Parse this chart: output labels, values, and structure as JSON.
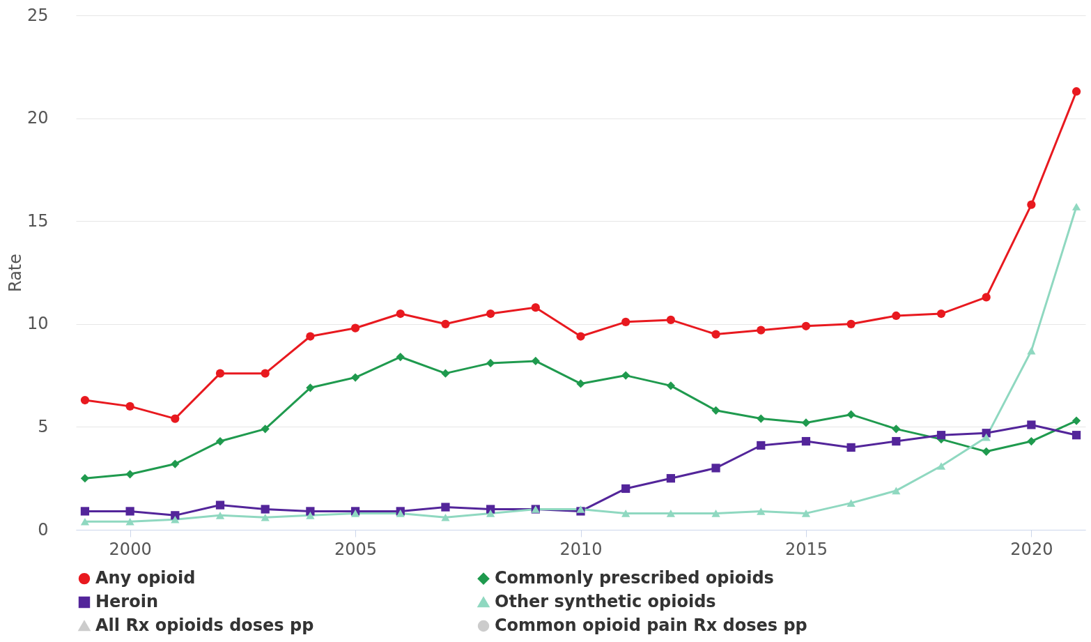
{
  "chart_data": {
    "type": "line",
    "ylabel": "Rate",
    "x": [
      1999,
      2000,
      2001,
      2002,
      2003,
      2004,
      2005,
      2006,
      2007,
      2008,
      2009,
      2010,
      2011,
      2012,
      2013,
      2014,
      2015,
      2016,
      2017,
      2018,
      2019,
      2020,
      2021
    ],
    "xlim": [
      1998.8,
      2021.2
    ],
    "xticks": [
      2000,
      2005,
      2010,
      2015,
      2020
    ],
    "ylim": [
      0,
      25
    ],
    "yticks": [
      0,
      5,
      10,
      15,
      20,
      25
    ],
    "grid": "y",
    "legend": "bottom",
    "series": [
      {
        "name": "Any opioid",
        "color": "#e8191f",
        "marker": "circle",
        "values": [
          6.3,
          6.0,
          5.4,
          7.6,
          7.6,
          9.4,
          9.8,
          10.5,
          10.0,
          10.5,
          10.8,
          9.4,
          10.1,
          10.2,
          9.5,
          9.7,
          9.9,
          10.0,
          10.4,
          10.5,
          11.3,
          15.8,
          21.3
        ]
      },
      {
        "name": "Commonly prescribed opioids",
        "color": "#1f9a4e",
        "marker": "diamond",
        "values": [
          2.5,
          2.7,
          3.2,
          4.3,
          4.9,
          6.9,
          7.4,
          8.4,
          7.6,
          8.1,
          8.2,
          7.1,
          7.5,
          7.0,
          5.8,
          5.4,
          5.2,
          5.6,
          4.9,
          4.4,
          3.8,
          4.3,
          5.3
        ]
      },
      {
        "name": "Heroin",
        "color": "#53259a",
        "marker": "square",
        "values": [
          0.9,
          0.9,
          0.7,
          1.2,
          1.0,
          0.9,
          0.9,
          0.9,
          1.1,
          1.0,
          1.0,
          0.9,
          2.0,
          2.5,
          3.0,
          4.1,
          4.3,
          4.0,
          4.3,
          4.6,
          4.7,
          5.1,
          4.6
        ]
      },
      {
        "name": "Other synthetic opioids",
        "color": "#8fd8c0",
        "marker": "triangle",
        "values": [
          0.4,
          0.4,
          0.5,
          0.7,
          0.6,
          0.7,
          0.8,
          0.8,
          0.6,
          0.8,
          1.0,
          1.0,
          0.8,
          0.8,
          0.8,
          0.9,
          0.8,
          1.3,
          1.9,
          3.1,
          4.5,
          8.7,
          15.7
        ]
      },
      {
        "name": "All Rx opioids doses pp",
        "color": "#cccccc",
        "marker": "triangle",
        "values": [
          null,
          null,
          null,
          null,
          null,
          null,
          null,
          null,
          null,
          null,
          null,
          null,
          null,
          null,
          null,
          null,
          null,
          null,
          null,
          null,
          null,
          null,
          null
        ]
      },
      {
        "name": "Common opioid pain Rx doses pp",
        "color": "#cccccc",
        "marker": "circle",
        "values": [
          null,
          null,
          null,
          null,
          null,
          null,
          null,
          null,
          null,
          null,
          null,
          null,
          null,
          null,
          null,
          null,
          null,
          null,
          null,
          null,
          null,
          null,
          null
        ]
      }
    ]
  }
}
